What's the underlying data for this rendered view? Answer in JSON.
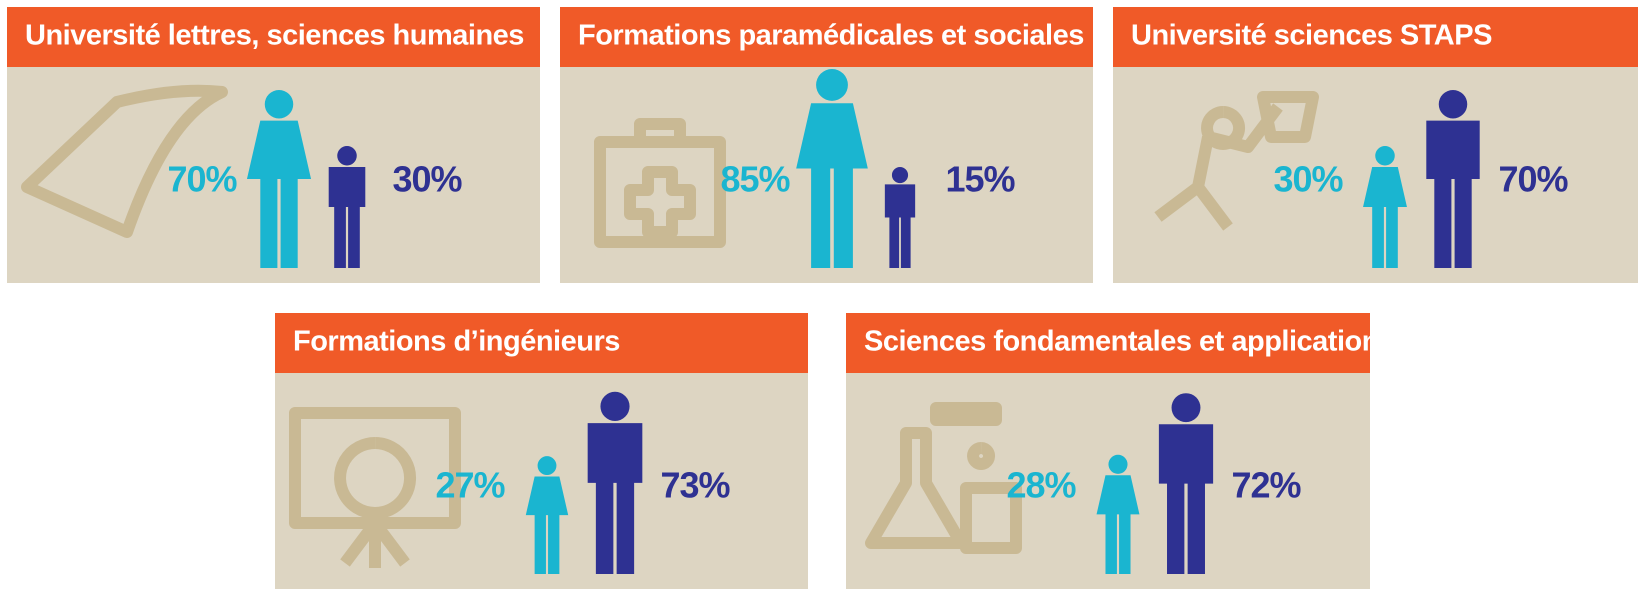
{
  "panels": [
    {
      "title": "Université lettres, sciences humaines",
      "women": {
        "value": 70,
        "label": "70%"
      },
      "men": {
        "value": 30,
        "label": "30%"
      }
    },
    {
      "title": "Formations paramédicales et sociales",
      "women": {
        "value": 85,
        "label": "85%"
      },
      "men": {
        "value": 15,
        "label": "15%"
      }
    },
    {
      "title": "Université sciences STAPS",
      "women": {
        "value": 30,
        "label": "30%"
      },
      "men": {
        "value": 70,
        "label": "70%"
      }
    },
    {
      "title": "Formations d’ingénieurs",
      "women": {
        "value": 27,
        "label": "27%"
      },
      "men": {
        "value": 73,
        "label": "73%"
      }
    },
    {
      "title": "Sciences fondamentales et applications",
      "women": {
        "value": 28,
        "label": "28%"
      },
      "men": {
        "value": 72,
        "label": "72%"
      }
    }
  ]
}
